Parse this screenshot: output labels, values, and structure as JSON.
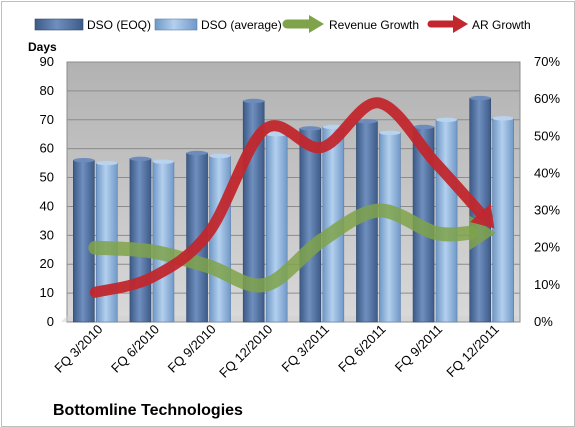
{
  "chart_data": {
    "type": "bar",
    "title": "",
    "company": "Bottomline Technologies",
    "ylabel": "Days",
    "ylim": [
      0,
      90
    ],
    "y_ticks": [
      0,
      10,
      20,
      30,
      40,
      50,
      60,
      70,
      80,
      90
    ],
    "y2lim": [
      0,
      70
    ],
    "y2_ticks": [
      "0%",
      "10%",
      "20%",
      "30%",
      "40%",
      "50%",
      "60%",
      "70%"
    ],
    "grid": true,
    "legend_position": "top",
    "categories": [
      "FQ 3/2010",
      "FQ 6/2010",
      "FQ 9/2010",
      "FQ 12/2010",
      "FQ 3/2011",
      "FQ 6/2011",
      "FQ 9/2011",
      "FQ 12/2011"
    ],
    "series": [
      {
        "name": "DSO (EOQ)",
        "type": "bar",
        "axis": "left",
        "color": "#4f6f9f",
        "values": [
          56,
          56.5,
          58.5,
          76.5,
          67,
          69.5,
          67.5,
          77.5
        ]
      },
      {
        "name": "DSO (average)",
        "type": "bar",
        "axis": "left",
        "color": "#8fb4dc",
        "values": [
          55,
          55.5,
          57.5,
          65,
          67.5,
          65.5,
          70,
          70.5
        ]
      },
      {
        "name": "Revenue Growth",
        "type": "line",
        "axis": "right",
        "color": "#7fa34a",
        "values": [
          20,
          19,
          15,
          10,
          22,
          30,
          24,
          24
        ]
      },
      {
        "name": "AR Growth",
        "type": "line",
        "axis": "right",
        "color": "#c1272d",
        "values": [
          8,
          12,
          24,
          52,
          47,
          59,
          43,
          26
        ]
      }
    ]
  }
}
